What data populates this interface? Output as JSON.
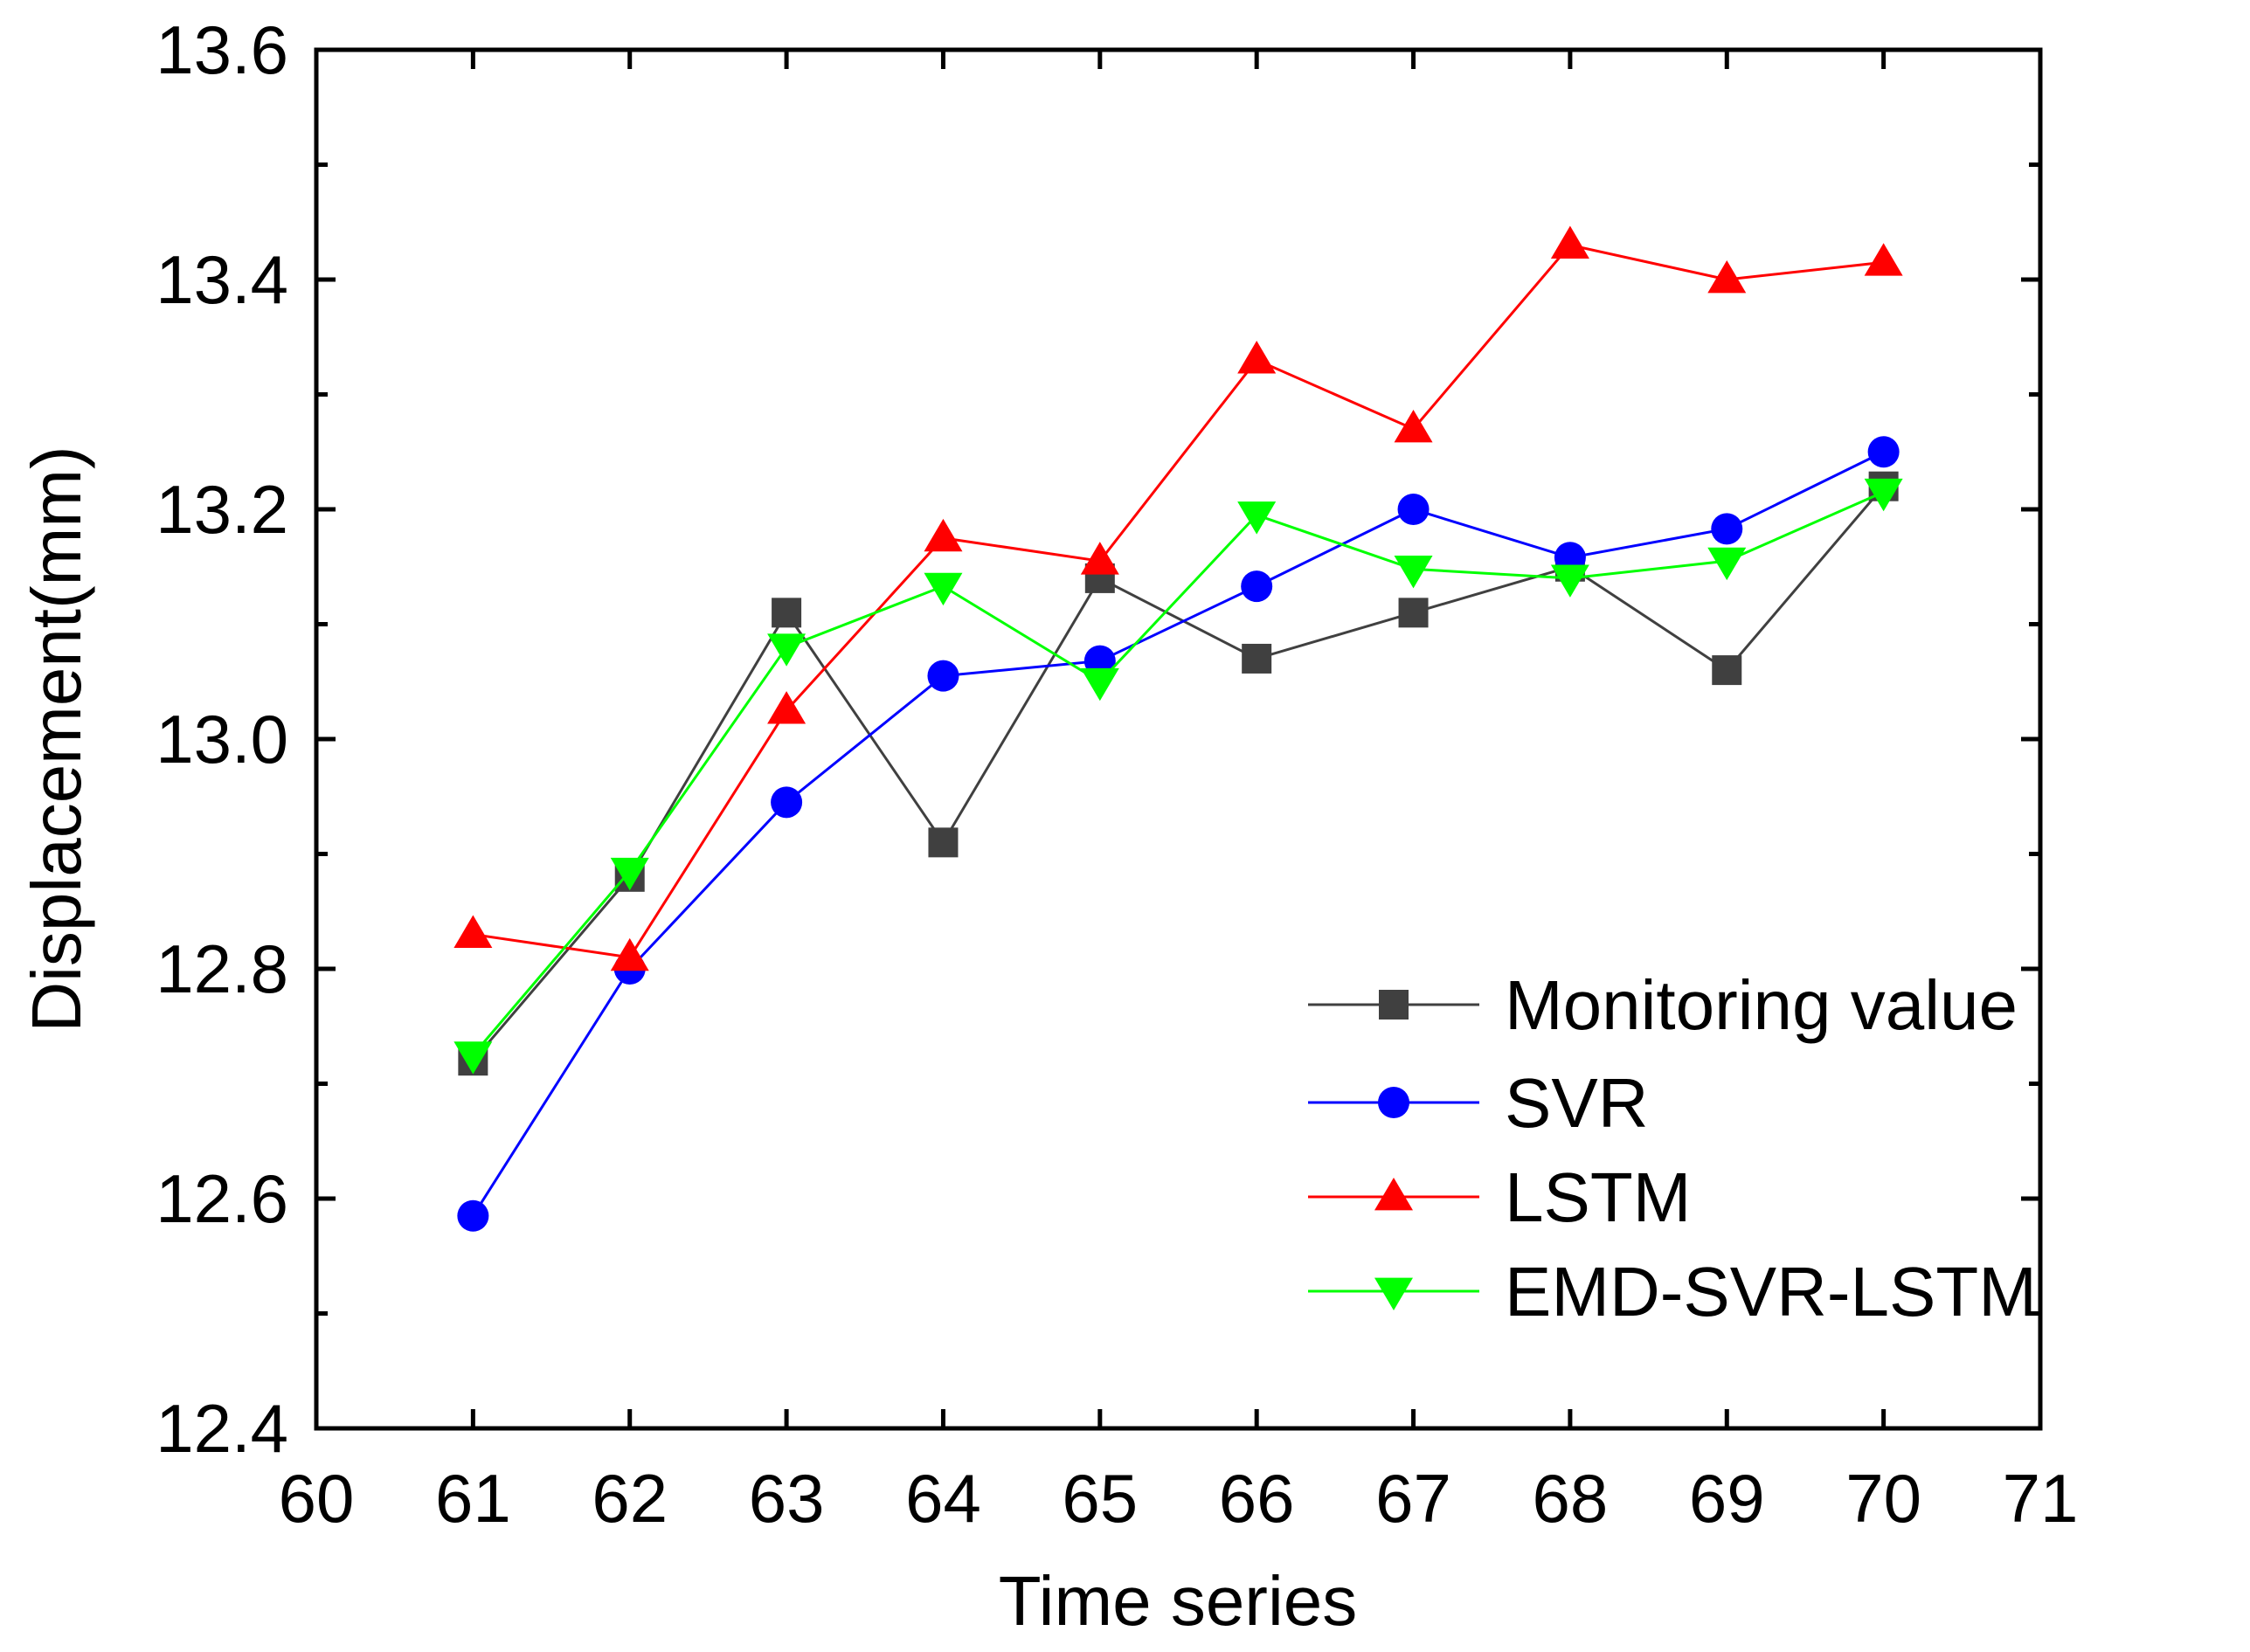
{
  "chart_data": {
    "type": "line",
    "title": "",
    "xlabel": "Time series",
    "ylabel": "Displacement(mm)",
    "xlim": [
      60,
      71
    ],
    "ylim": [
      12.4,
      13.6
    ],
    "x": [
      61,
      62,
      63,
      64,
      65,
      66,
      67,
      68,
      69,
      70
    ],
    "x_ticks": [
      "60",
      "61",
      "62",
      "63",
      "64",
      "65",
      "66",
      "67",
      "68",
      "69",
      "70",
      "71"
    ],
    "y_ticks": [
      "12.4",
      "12.6",
      "12.8",
      "13.0",
      "13.2",
      "13.4",
      "13.6"
    ],
    "legend_position": "bottom-right",
    "series": [
      {
        "name": "Monitoring value",
        "color": "#404040",
        "marker": "square",
        "values": [
          12.72,
          12.88,
          13.11,
          12.91,
          13.14,
          13.07,
          13.11,
          13.15,
          13.06,
          13.22
        ]
      },
      {
        "name": "SVR",
        "color": "#0000ff",
        "marker": "circle",
        "values": [
          12.585,
          12.8,
          12.945,
          13.055,
          13.068,
          13.133,
          13.2,
          13.158,
          13.183,
          13.25
        ]
      },
      {
        "name": "LSTM",
        "color": "#ff0000",
        "marker": "triangle-up",
        "values": [
          12.83,
          12.81,
          13.025,
          13.175,
          13.155,
          13.33,
          13.27,
          13.43,
          13.4,
          13.415
        ]
      },
      {
        "name": "EMD-SVR-LSTM",
        "color": "#00ff00",
        "marker": "triangle-down",
        "values": [
          12.725,
          12.885,
          13.08,
          13.133,
          13.05,
          13.195,
          13.148,
          13.14,
          13.155,
          13.215
        ]
      }
    ]
  }
}
